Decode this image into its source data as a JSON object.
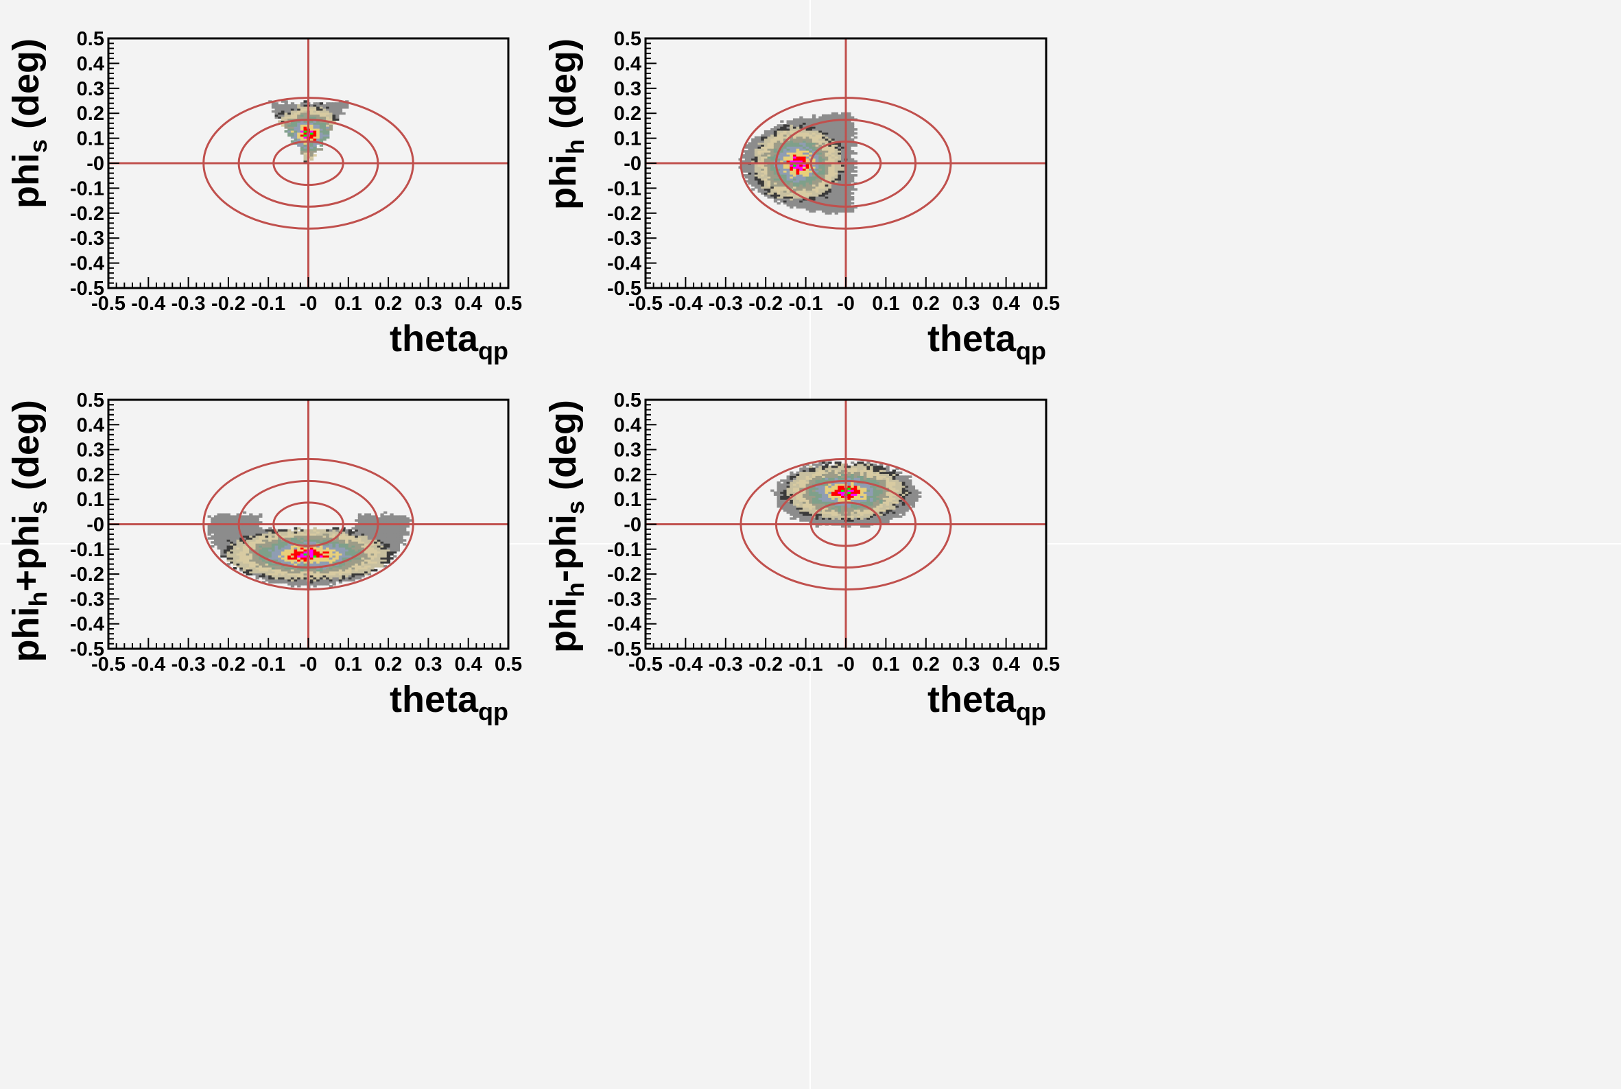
{
  "colors": {
    "background": "#f3f3f3",
    "frame": "#000000",
    "guides": "#c0504d",
    "contour_levels": [
      "#8c8c8c",
      "#3a3a3a",
      "#c8c0a0",
      "#d8cba2",
      "#9c9c88",
      "#7fa08a",
      "#8f9db3",
      "#e8d07a",
      "#ff0000",
      "#ff00ff",
      "#00ff00"
    ]
  },
  "chart_data": [
    {
      "type": "heatmap",
      "title": "",
      "xlabel": "theta",
      "xlabel_sub": "qp",
      "ylabel": "phi",
      "ylabel_sub": "s",
      "ylabel_suffix": " (deg)",
      "xlim": [
        -0.5,
        0.5
      ],
      "ylim": [
        -0.5,
        0.5
      ],
      "x_ticks": [
        "-0.5",
        "-0.4",
        "-0.3",
        "-0.2",
        "-0.1",
        "-0",
        "0.1",
        "0.2",
        "0.3",
        "0.4",
        "0.5"
      ],
      "y_ticks": [
        "-0.5",
        "-0.4",
        "-0.3",
        "-0.2",
        "-0.1",
        "-0",
        "0.1",
        "0.2",
        "0.3",
        "0.4",
        "0.5"
      ],
      "guide_ellipses_half_width": [
        0.087,
        0.174,
        0.262
      ],
      "guide_ellipses_half_height": [
        0.087,
        0.174,
        0.262
      ],
      "distribution": {
        "shape": "triangle",
        "center": [
          0.0,
          0.12
        ],
        "x_range": [
          -0.1,
          0.1
        ],
        "y_range": [
          0.0,
          0.24
        ]
      }
    },
    {
      "type": "heatmap",
      "title": "",
      "xlabel": "theta",
      "xlabel_sub": "qp",
      "ylabel": "phi",
      "ylabel_sub": "h",
      "ylabel_suffix": " (deg)",
      "xlim": [
        -0.5,
        0.5
      ],
      "ylim": [
        -0.5,
        0.5
      ],
      "x_ticks": [
        "-0.5",
        "-0.4",
        "-0.3",
        "-0.2",
        "-0.1",
        "-0",
        "0.1",
        "0.2",
        "0.3",
        "0.4",
        "0.5"
      ],
      "y_ticks": [
        "-0.5",
        "-0.4",
        "-0.3",
        "-0.2",
        "-0.1",
        "-0",
        "0.1",
        "0.2",
        "0.3",
        "0.4",
        "0.5"
      ],
      "guide_ellipses_half_width": [
        0.087,
        0.174,
        0.262
      ],
      "guide_ellipses_half_height": [
        0.087,
        0.174,
        0.262
      ],
      "distribution": {
        "shape": "half-disc",
        "center": [
          -0.12,
          0.0
        ],
        "x_range": [
          -0.26,
          0.02
        ],
        "y_range": [
          -0.2,
          0.2
        ]
      }
    },
    {
      "type": "heatmap",
      "title": "",
      "xlabel": "theta",
      "xlabel_sub": "qp",
      "ylabel": "phi",
      "ylabel_sub": "h",
      "ylabel_mid": "+phi",
      "ylabel_sub2": "s",
      "ylabel_suffix": " (deg)",
      "xlim": [
        -0.5,
        0.5
      ],
      "ylim": [
        -0.5,
        0.5
      ],
      "x_ticks": [
        "-0.5",
        "-0.4",
        "-0.3",
        "-0.2",
        "-0.1",
        "-0",
        "0.1",
        "0.2",
        "0.3",
        "0.4",
        "0.5"
      ],
      "y_ticks": [
        "-0.5",
        "-0.4",
        "-0.3",
        "-0.2",
        "-0.1",
        "-0",
        "0.1",
        "0.2",
        "0.3",
        "0.4",
        "0.5"
      ],
      "guide_ellipses_half_width": [
        0.087,
        0.174,
        0.262
      ],
      "guide_ellipses_half_height": [
        0.087,
        0.174,
        0.262
      ],
      "distribution": {
        "shape": "crescent-down",
        "center": [
          0.0,
          -0.12
        ],
        "x_range": [
          -0.24,
          0.25
        ],
        "y_range": [
          -0.25,
          0.05
        ]
      }
    },
    {
      "type": "heatmap",
      "title": "",
      "xlabel": "theta",
      "xlabel_sub": "qp",
      "ylabel": "phi",
      "ylabel_sub": "h",
      "ylabel_mid": "-phi",
      "ylabel_sub2": "s",
      "ylabel_suffix": " (deg)",
      "xlim": [
        -0.5,
        0.5
      ],
      "ylim": [
        -0.5,
        0.5
      ],
      "x_ticks": [
        "-0.5",
        "-0.4",
        "-0.3",
        "-0.2",
        "-0.1",
        "-0",
        "0.1",
        "0.2",
        "0.3",
        "0.4",
        "0.5"
      ],
      "y_ticks": [
        "-0.5",
        "-0.4",
        "-0.3",
        "-0.2",
        "-0.1",
        "-0",
        "0.1",
        "0.2",
        "0.3",
        "0.4",
        "0.5"
      ],
      "guide_ellipses_half_width": [
        0.087,
        0.174,
        0.262
      ],
      "guide_ellipses_half_height": [
        0.087,
        0.174,
        0.262
      ],
      "distribution": {
        "shape": "band-up",
        "center": [
          0.0,
          0.13
        ],
        "x_range": [
          -0.17,
          0.17
        ],
        "y_range": [
          0.0,
          0.24
        ]
      }
    }
  ]
}
